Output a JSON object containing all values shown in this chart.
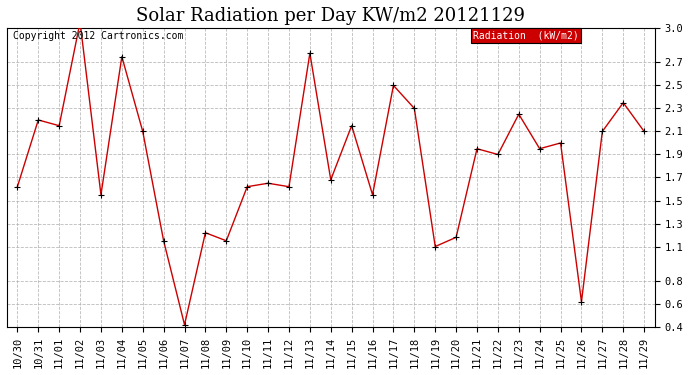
{
  "title": "Solar Radiation per Day KW/m2 20121129",
  "copyright": "Copyright 2012 Cartronics.com",
  "legend_label": "Radiation  (kW/m2)",
  "ylim": [
    0.4,
    3.0
  ],
  "yticks": [
    0.4,
    0.6,
    0.8,
    1.1,
    1.3,
    1.5,
    1.7,
    1.9,
    2.1,
    2.3,
    2.5,
    2.7,
    3.0
  ],
  "dates": [
    "10/30",
    "10/31",
    "11/01",
    "11/02",
    "11/03",
    "11/04",
    "11/05",
    "11/06",
    "11/07",
    "11/08",
    "11/09",
    "11/10",
    "11/11",
    "11/12",
    "11/13",
    "11/14",
    "11/15",
    "11/16",
    "11/17",
    "11/18",
    "11/19",
    "11/20",
    "11/21",
    "11/22",
    "11/23",
    "11/24",
    "11/25",
    "11/26",
    "11/27",
    "11/28",
    "11/29"
  ],
  "values": [
    1.62,
    2.2,
    2.15,
    3.05,
    1.55,
    2.75,
    2.1,
    1.15,
    0.42,
    1.22,
    1.15,
    1.62,
    1.65,
    1.62,
    2.78,
    1.68,
    2.15,
    1.55,
    2.5,
    2.3,
    1.1,
    1.18,
    1.95,
    1.9,
    2.25,
    1.95,
    2.0,
    0.62,
    2.1,
    2.35,
    2.1
  ],
  "line_color": "#cc0000",
  "marker_color": "#000000",
  "bg_color": "#ffffff",
  "grid_color": "#aaaaaa",
  "legend_bg": "#cc0000",
  "legend_text_color": "#ffffff",
  "title_fontsize": 13,
  "tick_fontsize": 7.5,
  "copyright_fontsize": 7
}
